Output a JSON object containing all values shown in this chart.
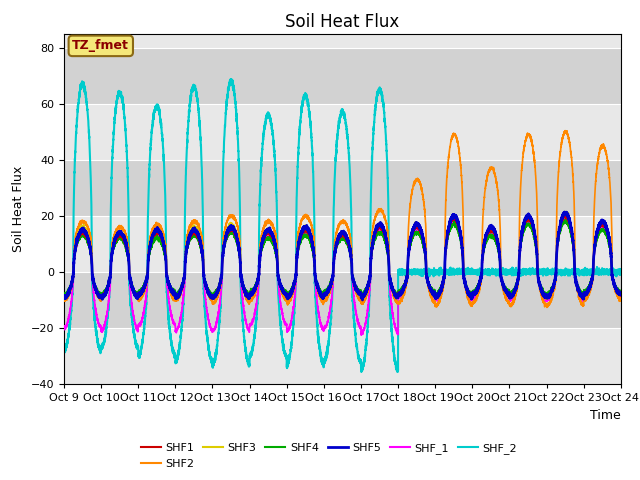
{
  "title": "Soil Heat Flux",
  "ylabel": "Soil Heat Flux",
  "xlabel": "Time",
  "ylim": [
    -40,
    85
  ],
  "xlim": [
    0,
    360
  ],
  "bg_color": "#e0e0e0",
  "band_colors": [
    "#e8e8e8",
    "#d8d8d8"
  ],
  "annotation_text": "TZ_fmet",
  "annotation_bg": "#f5e87a",
  "annotation_border": "#8B6914",
  "x_tick_labels": [
    "Oct 9",
    "Oct 10",
    "Oct 11",
    "Oct 12",
    "Oct 13",
    "Oct 14",
    "Oct 15",
    "Oct 16",
    "Oct 17",
    "Oct 18",
    "Oct 19",
    "Oct 20",
    "Oct 21",
    "Oct 22",
    "Oct 23",
    "Oct 24"
  ],
  "series_colors": {
    "SHF1": "#cc0000",
    "SHF2": "#ff8800",
    "SHF3": "#ddcc00",
    "SHF4": "#00aa00",
    "SHF5": "#0000cc",
    "SHF_1": "#ff00ff",
    "SHF_2": "#00cccc"
  },
  "series_lw": {
    "SHF1": 1.2,
    "SHF2": 1.2,
    "SHF3": 1.2,
    "SHF4": 1.2,
    "SHF5": 2.0,
    "SHF_1": 1.2,
    "SHF_2": 1.5
  },
  "title_fontsize": 12,
  "label_fontsize": 9,
  "tick_fontsize": 8,
  "cyan_days": 9,
  "total_days": 15,
  "shf_cyan_day_peaks": [
    67,
    64,
    59,
    66,
    68,
    56,
    63,
    57,
    65,
    0,
    0,
    0,
    0,
    0,
    0
  ],
  "shf_cyan_night_troughs": [
    28,
    27,
    30,
    32,
    33,
    30,
    33,
    32,
    35,
    0,
    0,
    0,
    0,
    0,
    0
  ],
  "shf_orange_day_peaks": [
    18,
    16,
    17,
    18,
    20,
    18,
    20,
    18,
    22,
    33,
    49,
    37,
    49,
    50,
    45
  ],
  "shf_orange_night_troughs": [
    10,
    9,
    10,
    10,
    11,
    10,
    11,
    10,
    11,
    11,
    12,
    11,
    12,
    12,
    10
  ],
  "shf_red_day_peaks": [
    14,
    13,
    14,
    14,
    15,
    14,
    15,
    13,
    16,
    16,
    19,
    15,
    19,
    20,
    17
  ],
  "shf_red_night_troughs": [
    9,
    9,
    8,
    9,
    9,
    8,
    9,
    8,
    9,
    8,
    9,
    8,
    9,
    9,
    8
  ],
  "shf_yellow_day_peaks": [
    16,
    14,
    15,
    16,
    17,
    15,
    16,
    14,
    17,
    17,
    20,
    16,
    20,
    21,
    18
  ],
  "shf_yellow_night_troughs": [
    9,
    9,
    8,
    9,
    9,
    8,
    9,
    8,
    9,
    8,
    9,
    8,
    9,
    9,
    8
  ],
  "shf_green_day_peaks": [
    13,
    12,
    12,
    13,
    14,
    12,
    13,
    12,
    14,
    14,
    17,
    13,
    17,
    18,
    15
  ],
  "shf_green_night_troughs": [
    8,
    8,
    7,
    8,
    8,
    7,
    8,
    7,
    8,
    7,
    8,
    7,
    8,
    8,
    7
  ],
  "shf_blue_day_peaks": [
    15,
    14,
    15,
    15,
    16,
    15,
    16,
    14,
    17,
    17,
    20,
    16,
    20,
    21,
    18
  ],
  "shf_blue_night_troughs": [
    9,
    9,
    8,
    9,
    9,
    8,
    9,
    8,
    9,
    8,
    9,
    8,
    9,
    9,
    8
  ],
  "shf_mag_day_peaks": [
    14,
    13,
    13,
    14,
    15,
    13,
    14,
    13,
    15,
    15,
    18,
    14,
    18,
    19,
    16
  ],
  "shf_mag_night_troughs": [
    20,
    21,
    19,
    21,
    21,
    19,
    21,
    20,
    22,
    9,
    10,
    9,
    10,
    10,
    9
  ]
}
